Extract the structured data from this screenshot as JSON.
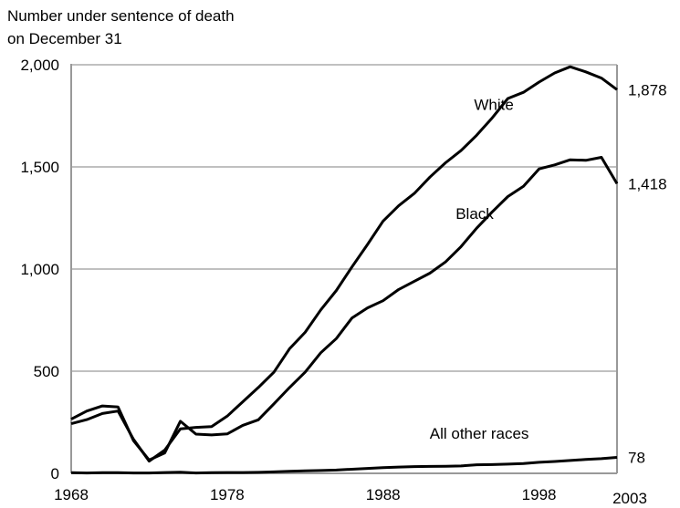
{
  "chart_data": {
    "type": "line",
    "ylabel_lines": [
      "Number under sentence of death",
      "on December 31"
    ],
    "ylim": [
      0,
      2000
    ],
    "yticks": [
      0,
      500,
      1000,
      1500,
      2000
    ],
    "ytick_labels": [
      "0",
      "500",
      "1,000",
      "1,500",
      "2,000"
    ],
    "xlim": [
      1968,
      2003
    ],
    "xtick_labels": [
      {
        "value": 1968,
        "label": "1968"
      },
      {
        "value": 1978,
        "label": "1978"
      },
      {
        "value": 1988,
        "label": "1988"
      },
      {
        "value": 1998,
        "label": "1998"
      },
      {
        "value": 2003,
        "label": "2003"
      }
    ],
    "grid": "horizontal",
    "x": [
      1968,
      1969,
      1970,
      1971,
      1972,
      1973,
      1974,
      1975,
      1976,
      1977,
      1978,
      1979,
      1980,
      1981,
      1982,
      1983,
      1984,
      1985,
      1986,
      1987,
      1988,
      1989,
      1990,
      1991,
      1992,
      1993,
      1994,
      1995,
      1996,
      1997,
      1998,
      1999,
      2000,
      2001,
      2002,
      2003
    ],
    "series": [
      {
        "name": "White",
        "end_label": "1,878",
        "values": [
          243,
          263,
          293,
          305,
          166,
          60,
          114,
          218,
          225,
          229,
          280,
          350,
          420,
          495,
          610,
          690,
          800,
          895,
          1010,
          1120,
          1235,
          1310,
          1370,
          1450,
          1520,
          1580,
          1655,
          1740,
          1835,
          1865,
          1915,
          1960,
          1990,
          1965,
          1935,
          1878
        ]
      },
      {
        "name": "Black",
        "end_label": "1,418",
        "values": [
          265,
          305,
          330,
          325,
          160,
          65,
          100,
          255,
          192,
          188,
          193,
          235,
          262,
          340,
          420,
          495,
          590,
          660,
          760,
          810,
          845,
          900,
          940,
          980,
          1035,
          1110,
          1200,
          1280,
          1355,
          1405,
          1490,
          1510,
          1535,
          1532,
          1547,
          1418
        ]
      },
      {
        "name": "All other races",
        "end_label": "78",
        "values": [
          3,
          2,
          3,
          3,
          2,
          2,
          4,
          6,
          2,
          3,
          4,
          4,
          5,
          7,
          10,
          12,
          14,
          16,
          20,
          24,
          28,
          31,
          33,
          34,
          35,
          36,
          42,
          43,
          45,
          48,
          54,
          58,
          63,
          68,
          72,
          78
        ]
      }
    ],
    "colors": {
      "line": "#000000",
      "grid": "#c0c0c0",
      "axis": "#999999"
    }
  }
}
